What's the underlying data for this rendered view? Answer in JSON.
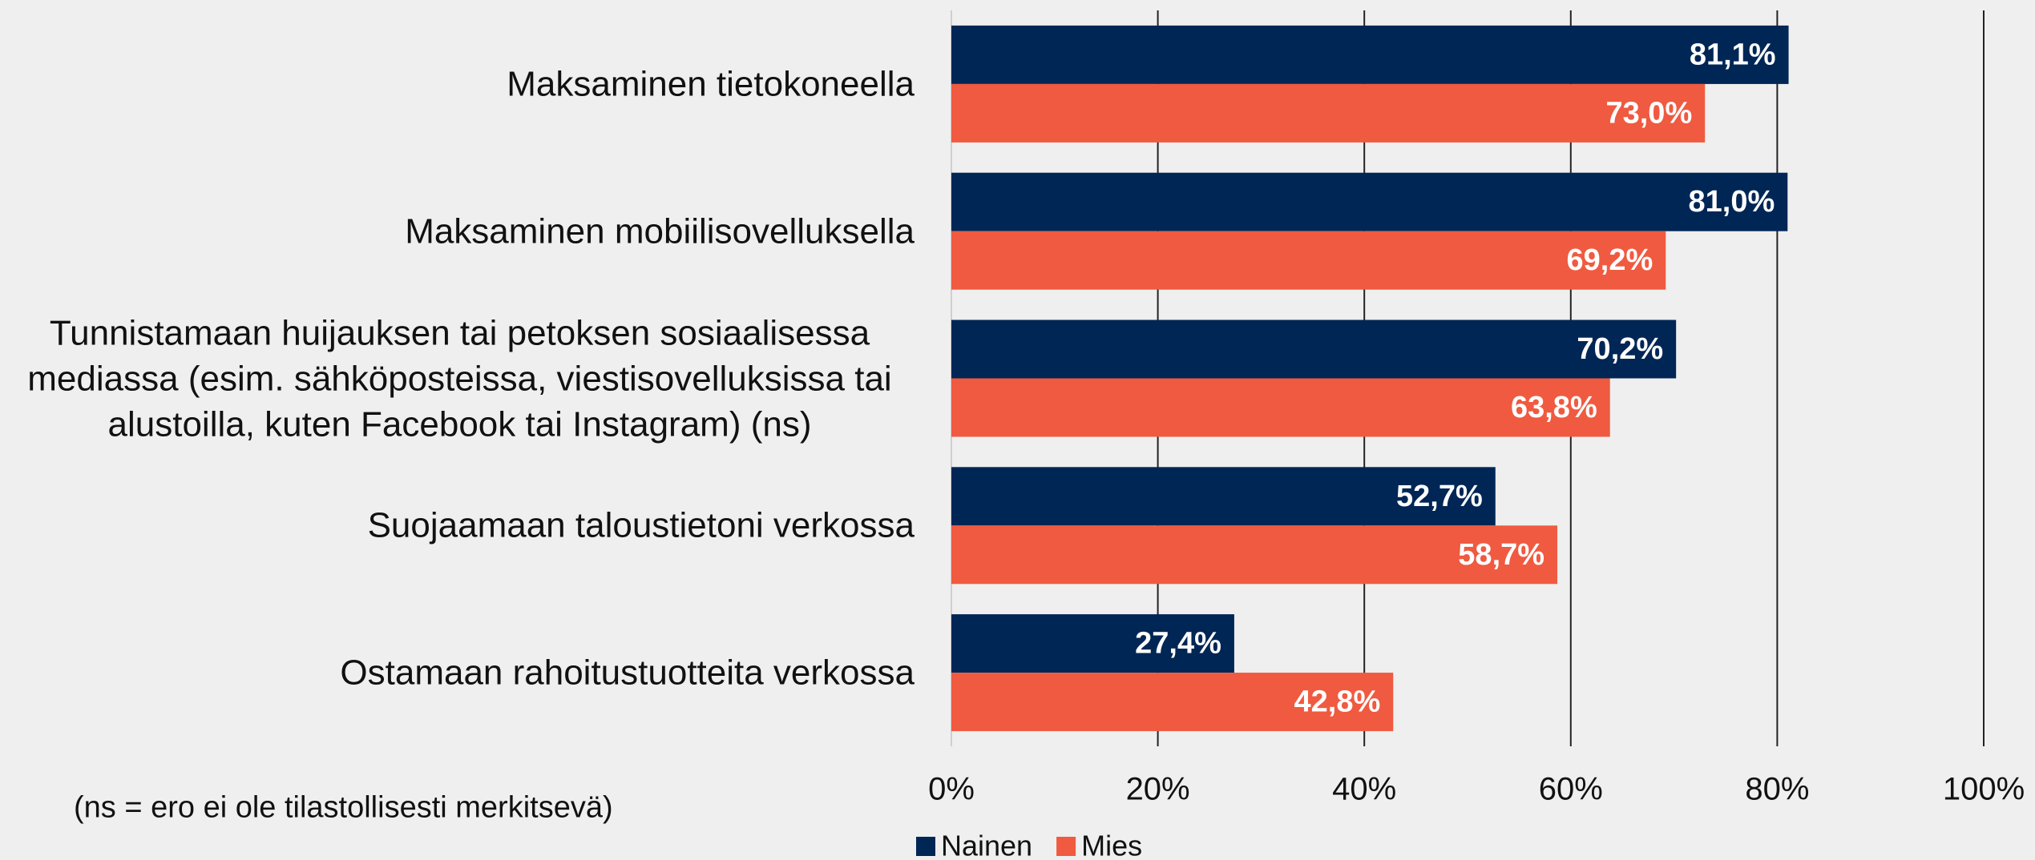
{
  "chart_data": {
    "type": "bar",
    "orientation": "horizontal",
    "categories": [
      "Maksaminen tietokoneella",
      "Maksaminen mobiilisovelluksella",
      "Tunnistamaan huijauksen tai petoksen sosiaalisessa mediassa (esim. sähköposteissa, viestisovelluksissa tai alustoilla, kuten Facebook tai Instagram) (ns)",
      "Suojaamaan taloustietoni verkossa",
      "Ostamaan rahoitustuotteita verkossa"
    ],
    "series": [
      {
        "name": "Nainen",
        "color": "#002655",
        "values": [
          81.1,
          81.0,
          70.2,
          52.7,
          27.4
        ],
        "value_labels": [
          "81,1%",
          "81,0%",
          "70,2%",
          "52,7%",
          "27,4%"
        ]
      },
      {
        "name": "Mies",
        "color": "#f05a40",
        "values": [
          73.0,
          69.2,
          63.8,
          58.7,
          42.8
        ],
        "value_labels": [
          "73,0%",
          "69,2%",
          "63,8%",
          "58,7%",
          "42,8%"
        ]
      }
    ],
    "xlim": [
      0,
      100
    ],
    "xticks": [
      {
        "value": 0,
        "label": "0%"
      },
      {
        "value": 20,
        "label": "20%"
      },
      {
        "value": 40,
        "label": "40%"
      },
      {
        "value": 60,
        "label": "60%"
      },
      {
        "value": 80,
        "label": "80%"
      },
      {
        "value": 100,
        "label": "100%"
      }
    ],
    "grid": true,
    "legend": "bottom",
    "note": "(ns = ero ei ole tilastollisesti merkitsevä)"
  }
}
